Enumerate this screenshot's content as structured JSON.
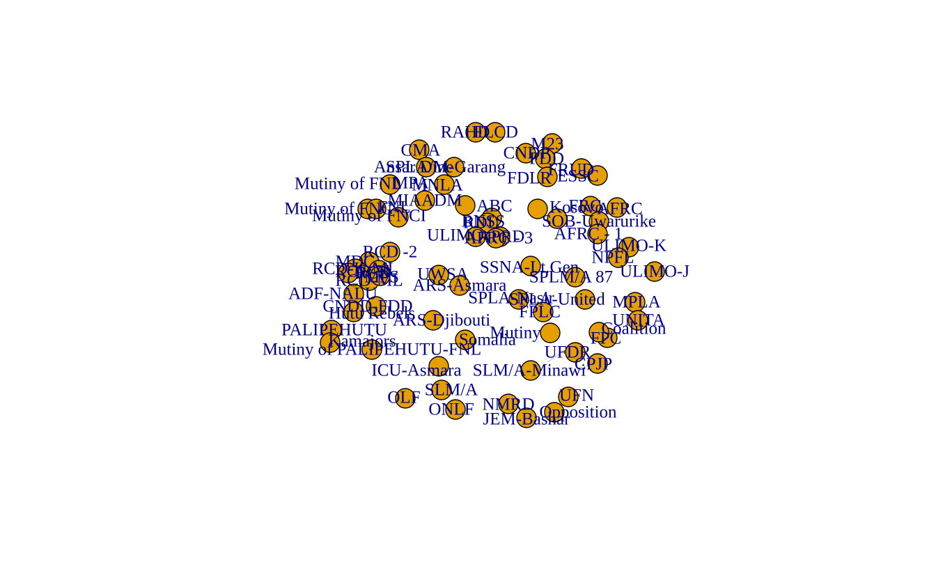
{
  "style": {
    "node_fill": "#E69F00",
    "node_stroke": "#000000",
    "label_color": "#00008B",
    "edge_color": "#BDBDBD"
  },
  "nodes": [
    {
      "label": "RAHD"
    },
    {
      "label": "FLCD"
    },
    {
      "label": "M23"
    },
    {
      "label": "CNDP"
    },
    {
      "label": "CMA"
    },
    {
      "label": "SPLA/M-Garang"
    },
    {
      "label": "FDD"
    },
    {
      "label": "Ansar Dine"
    },
    {
      "label": "MPA"
    },
    {
      "label": "FRUD"
    },
    {
      "label": "ESSC"
    },
    {
      "label": "Mutiny of FNL"
    },
    {
      "label": "MNLA"
    },
    {
      "label": "FDLR"
    },
    {
      "label": "FRC"
    },
    {
      "label": "MIAADM"
    },
    {
      "label": "FNL"
    },
    {
      "label": "APRD"
    },
    {
      "label": "AFRC"
    },
    {
      "label": "Mutiny of FNC"
    },
    {
      "label": "ABC"
    },
    {
      "label": "Kosovo"
    },
    {
      "label": "RDL"
    },
    {
      "label": "Mutiny of FNCI"
    },
    {
      "label": "BNSS"
    },
    {
      "label": "SOB-Uwarurike"
    },
    {
      "label": "ULIMO"
    },
    {
      "label": "AFRC - 1"
    },
    {
      "label": "AFRC - 3"
    },
    {
      "label": "ULIMO-K"
    },
    {
      "label": "RCD -2"
    },
    {
      "label": "NPFL"
    },
    {
      "label": "MDC"
    },
    {
      "label": "RCD-K-ML"
    },
    {
      "label": "SSNA-Lt.Gen"
    },
    {
      "label": "SPLA-United"
    },
    {
      "label": "ULIMO-J"
    },
    {
      "label": "RCD-N"
    },
    {
      "label": "RCD-ML"
    },
    {
      "label": "SPLM/A 87"
    },
    {
      "label": "RCD"
    },
    {
      "label": "MPS"
    },
    {
      "label": "UWSA"
    },
    {
      "label": "ADF-NALU"
    },
    {
      "label": "ARS-Asmara"
    },
    {
      "label": "SPLA-Nasir"
    },
    {
      "label": "MPLA"
    },
    {
      "label": "CNDD-FDD"
    },
    {
      "label": "Hutu Rebels"
    },
    {
      "label": "ARS-Djibouti"
    },
    {
      "label": "FPLC"
    },
    {
      "label": "UNITA"
    },
    {
      "label": "PALIPEHUTU"
    },
    {
      "label": "Mutiny"
    },
    {
      "label": "Coalition"
    },
    {
      "label": "Kamajors"
    },
    {
      "label": "Somalia"
    },
    {
      "label": "FPC"
    },
    {
      "label": "Mutiny of PALIPEHUTU-FNL"
    },
    {
      "label": "UFDR"
    },
    {
      "label": "CPJP"
    },
    {
      "label": "ICU-Asmara"
    },
    {
      "label": "SLM/A-Minawi"
    },
    {
      "label": "OLF"
    },
    {
      "label": "SLM/A"
    },
    {
      "label": "NMRD"
    },
    {
      "label": "UFN"
    },
    {
      "label": "ONLF"
    },
    {
      "label": "JEM-Bashar"
    },
    {
      "label": "Opposition"
    }
  ]
}
